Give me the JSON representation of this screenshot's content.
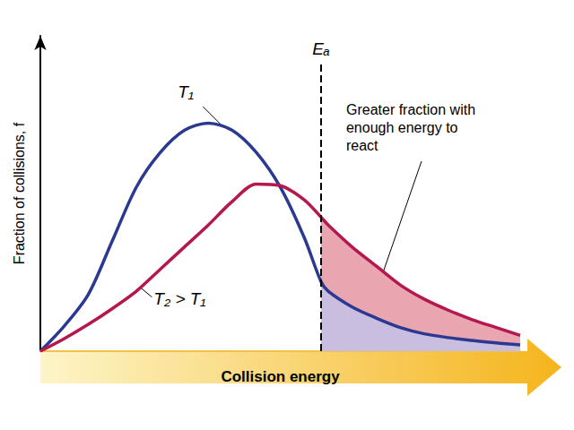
{
  "chart_data": {
    "type": "line",
    "x_label": "Collision energy",
    "y_label": "Fraction of collisions, f",
    "x": [
      0,
      5,
      10,
      15,
      20,
      25,
      30,
      35,
      40,
      45,
      50,
      55,
      58.5,
      60,
      65,
      70,
      75,
      80,
      85,
      90,
      95,
      100
    ],
    "series": [
      {
        "name": "T₁",
        "color": "#2b3990",
        "values": [
          0,
          8,
          18,
          35,
          52,
          63,
          70,
          72.3,
          70,
          63,
          52,
          36,
          22,
          19,
          14,
          10.5,
          7.5,
          5.5,
          4.3,
          3.4,
          2.6,
          2
        ]
      },
      {
        "name": "T₂ > T₁",
        "color": "#b5174f",
        "values": [
          0,
          4,
          8.5,
          13.5,
          19,
          26,
          33,
          40,
          47.5,
          53,
          52.5,
          48,
          42.5,
          40,
          33,
          27,
          21,
          16.5,
          13,
          10,
          7.5,
          5
        ]
      }
    ],
    "activation_energy": {
      "label": "Eₐ",
      "x": 58.5
    },
    "annotation": "Greater fraction with enough energy to react",
    "xlim": [
      0,
      100
    ],
    "ylim": [
      0,
      100
    ],
    "tick_labels": false,
    "grid": false
  }
}
